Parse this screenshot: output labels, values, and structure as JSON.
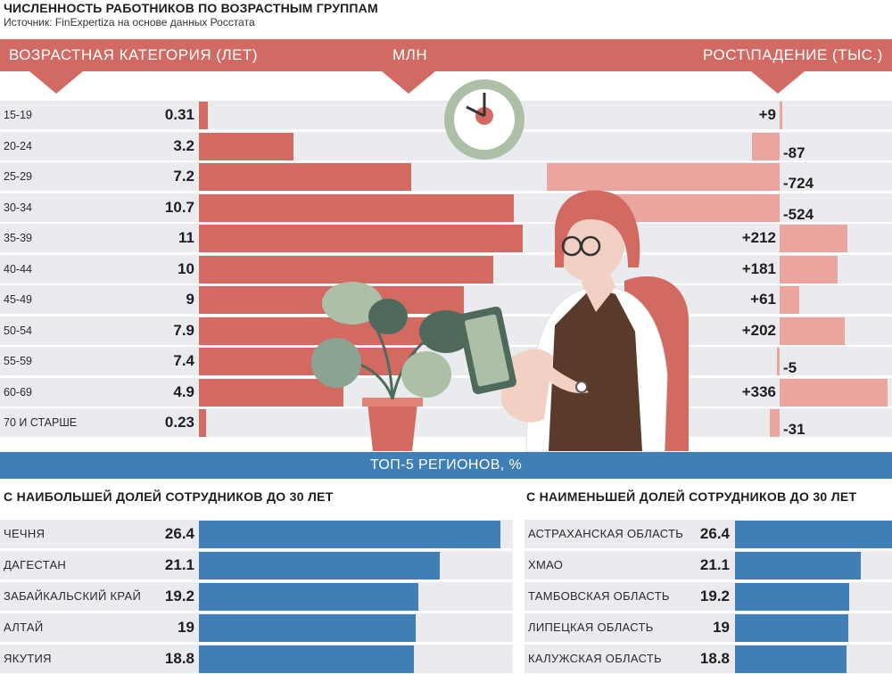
{
  "header": {
    "title": "ЧИСЛЕННОСТЬ РАБОТНИКОВ ПО ВОЗРАСТНЫМ ГРУППАМ",
    "source": "Источник: FinExpertiza на основе данных Росстата"
  },
  "band": {
    "left": "ВОЗРАСТНАЯ КАТЕГОРИЯ (ЛЕТ)",
    "middle": "МЛН",
    "right": "РОСТ\\ПАДЕНИЕ (ТЫС.)"
  },
  "regions": {
    "title": "ТОП-5 РЕГИОНОВ, %",
    "left_heading": "С НАИБОЛЬШЕЙ ДОЛЕЙ СОТРУДНИКОВ ДО 30 ЛЕТ",
    "right_heading": "С НАИМЕНЬШЕЙ ДОЛЕЙ СОТРУДНИКОВ ДО 30 ЛЕТ"
  },
  "colors": {
    "accent_red": "#d26a62",
    "delta_pink": "#e9a59e",
    "accent_blue": "#3f7fb5",
    "row_gray": "#e9ebee"
  },
  "chart_data": [
    {
      "type": "bar",
      "categories": [
        "15-19",
        "20-24",
        "25-29",
        "30-34",
        "35-39",
        "40-44",
        "45-49",
        "50-54",
        "55-59",
        "60-69",
        "70 И СТАРШЕ"
      ],
      "series": [
        {
          "name": "МЛН",
          "values": [
            0.31,
            3.2,
            7.2,
            10.7,
            11,
            10,
            9,
            7.9,
            7.4,
            4.9,
            0.23
          ],
          "labels": [
            "0.31",
            "3.2",
            "7.2",
            "10.7",
            "11",
            "10",
            "9",
            "7.9",
            "7.4",
            "4.9",
            "0.23"
          ]
        },
        {
          "name": "РОСТ\\ПАДЕНИЕ (ТЫС.)",
          "values": [
            9,
            -87,
            -724,
            -524,
            212,
            181,
            61,
            202,
            -5,
            336,
            -31
          ],
          "labels": [
            "+9",
            "-87",
            "-724",
            "-524",
            "+212",
            "+181",
            "+61",
            "+202",
            "-5",
            "+336",
            "-31"
          ]
        }
      ]
    },
    {
      "type": "bar",
      "title": "С НАИБОЛЬШЕЙ ДОЛЕЙ СОТРУДНИКОВ ДО 30 ЛЕТ",
      "categories": [
        "ЧЕЧНЯ",
        "ДАГЕСТАН",
        "ЗАБАЙКАЛЬСКИЙ КРАЙ",
        "АЛТАЙ",
        "ЯКУТИЯ"
      ],
      "values": [
        26.4,
        21.1,
        19.2,
        19,
        18.8
      ],
      "labels": [
        "26.4",
        "21.1",
        "19.2",
        "19",
        "18.8"
      ]
    },
    {
      "type": "bar",
      "title": "С НАИМЕНЬШЕЙ ДОЛЕЙ СОТРУДНИКОВ ДО 30 ЛЕТ",
      "categories": [
        "АСТРАХАНСКАЯ ОБЛАСТЬ",
        "ХМАО",
        "ТАМБОВСКАЯ ОБЛАСТЬ",
        "ЛИПЕЦКАЯ ОБЛАСТЬ",
        "КАЛУЖСКАЯ ОБЛАСТЬ"
      ],
      "values": [
        26.4,
        21.1,
        19.2,
        19,
        18.8
      ],
      "labels": [
        "26.4",
        "21.1",
        "19.2",
        "19",
        "18.8"
      ]
    }
  ]
}
